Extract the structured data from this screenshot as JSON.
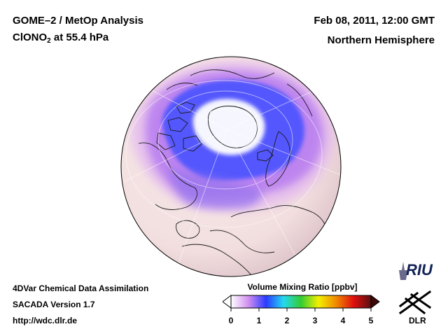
{
  "header": {
    "title_line1": "GOME–2 / MetOp Analysis",
    "species_prefix": "ClONO",
    "species_subscript": "2",
    "species_suffix": " at 55.4 hPa",
    "date": "Feb 08, 2011, 12:00 GMT",
    "region": "Northern Hemisphere"
  },
  "footer": {
    "line1": "4DVar Chemical Data Assimilation",
    "line2": "SACADA Version 1.7",
    "line3": "http://wdc.dlr.de"
  },
  "colorbar": {
    "title": "Volume Mixing Ratio [ppbv]",
    "ticks": [
      "0",
      "1",
      "2",
      "3",
      "4",
      "5"
    ],
    "range": [
      0,
      5
    ],
    "colors": [
      "#ffffff",
      "#d08ef0",
      "#2a3bff",
      "#24d8f0",
      "#33cc33",
      "#f3f000",
      "#f08a00",
      "#e01010",
      "#5a1010"
    ]
  },
  "logos": {
    "riu": "RIU",
    "dlr": "DLR"
  },
  "palette": {
    "land_background": "#f6e4e4",
    "low_vortex": "#ffffff",
    "enhanced": "#4050ff"
  }
}
